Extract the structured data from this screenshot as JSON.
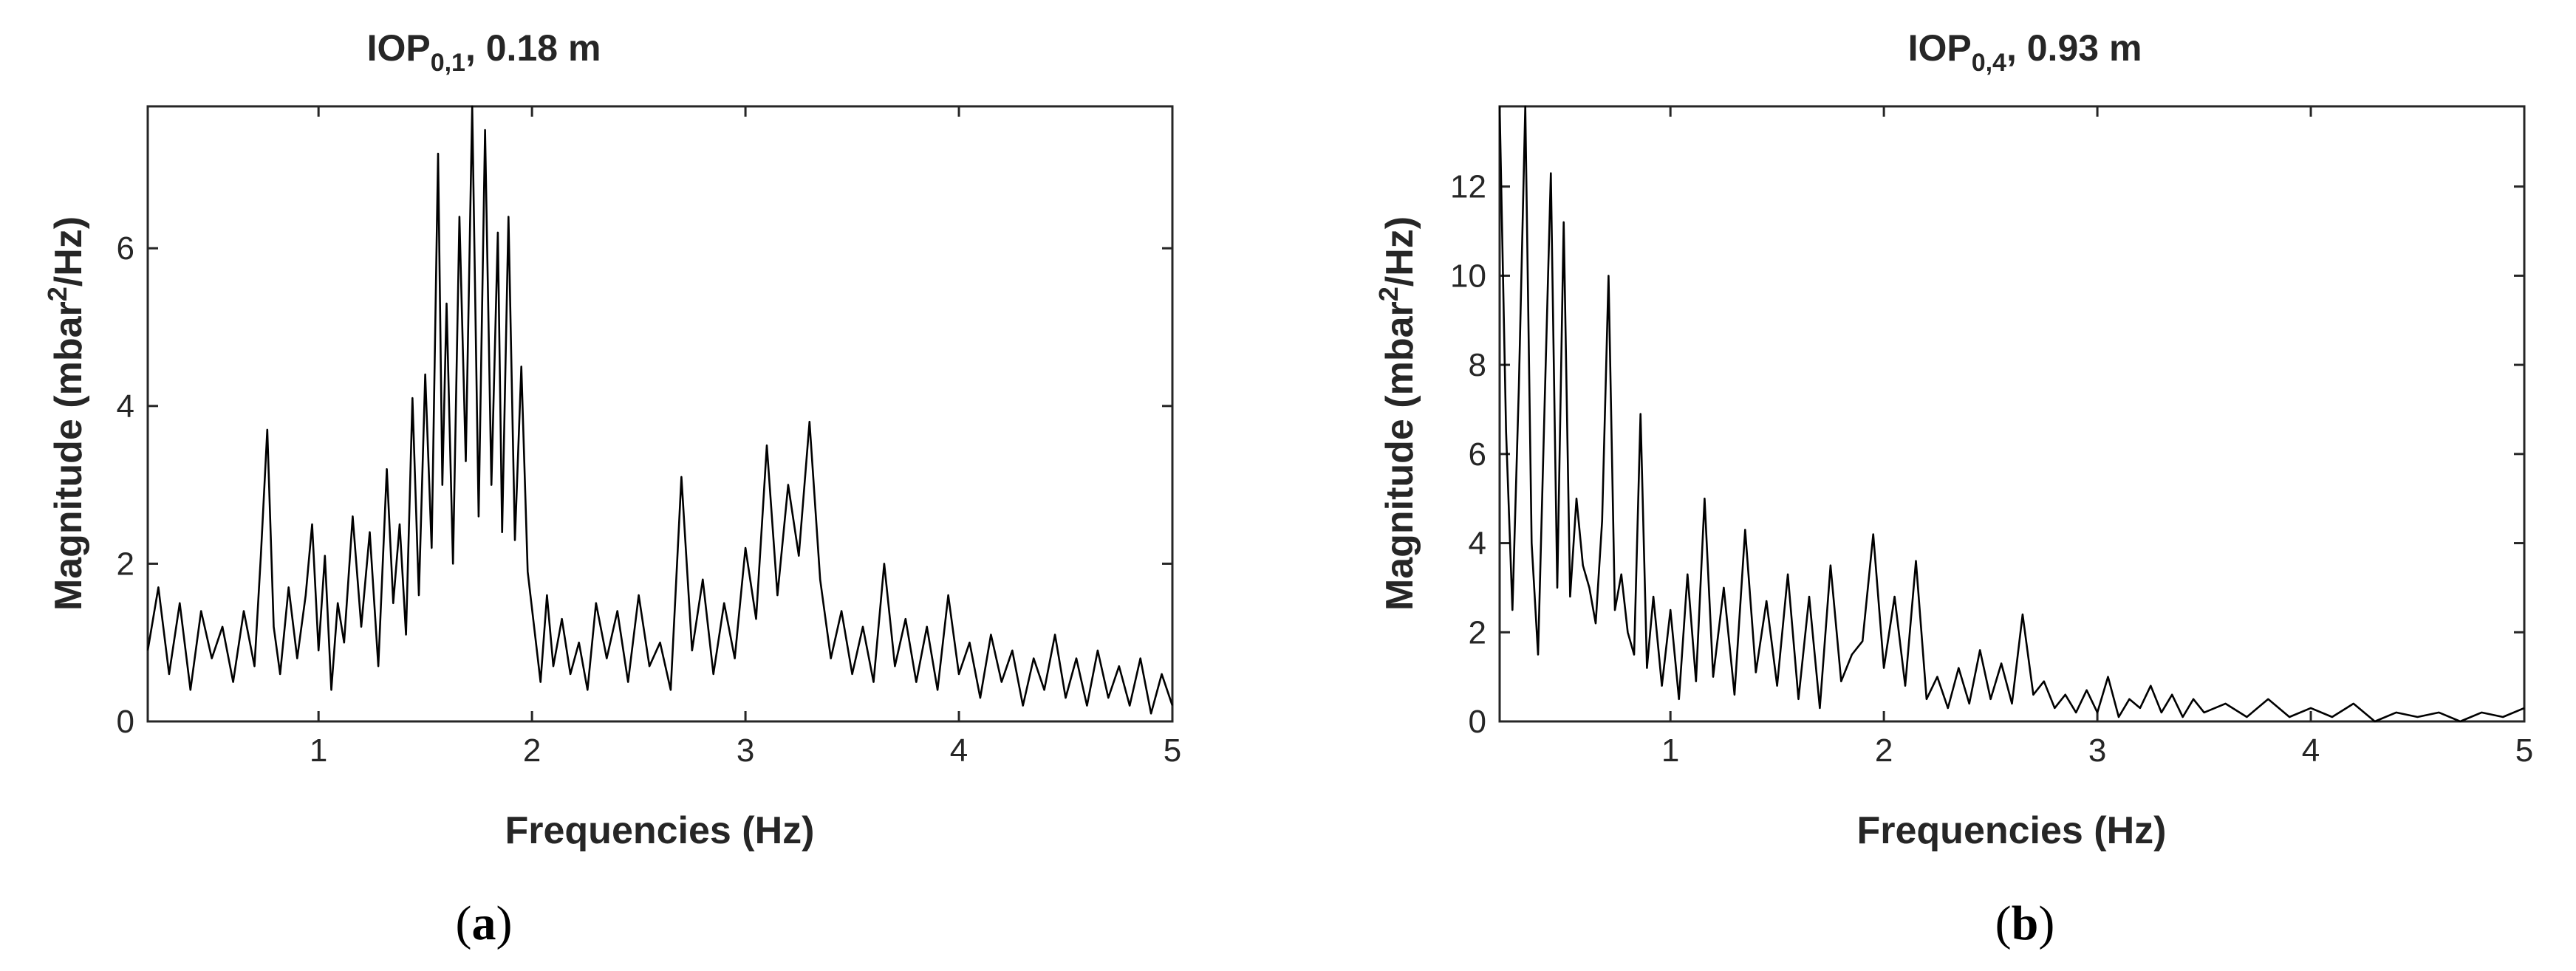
{
  "chart_data": [
    {
      "type": "line",
      "title_base": "IOP",
      "title_sub": "0,1",
      "title_rest": ", 0.18 m",
      "xlabel": "Frequencies (Hz)",
      "ylabel_base": "Magnitude (mbar",
      "ylabel_sup": "2",
      "ylabel_rest": "/Hz)",
      "caption_open": "(",
      "caption_letter": "a",
      "caption_close": ")",
      "xlim": [
        0.2,
        5
      ],
      "ylim": [
        0,
        7.8
      ],
      "xticks": [
        1,
        2,
        3,
        4,
        5
      ],
      "yticks": [
        0,
        2,
        4,
        6
      ],
      "series": [
        {
          "x": [
            0.2,
            0.25,
            0.3,
            0.35,
            0.4,
            0.45,
            0.5,
            0.55,
            0.6,
            0.65,
            0.7,
            0.73,
            0.76,
            0.79,
            0.82,
            0.86,
            0.9,
            0.94,
            0.97,
            1.0,
            1.03,
            1.06,
            1.09,
            1.12,
            1.16,
            1.2,
            1.24,
            1.28,
            1.32,
            1.35,
            1.38,
            1.41,
            1.44,
            1.47,
            1.5,
            1.53,
            1.56,
            1.58,
            1.6,
            1.63,
            1.66,
            1.69,
            1.72,
            1.75,
            1.78,
            1.81,
            1.84,
            1.86,
            1.89,
            1.92,
            1.95,
            1.98,
            2.01,
            2.04,
            2.07,
            2.1,
            2.14,
            2.18,
            2.22,
            2.26,
            2.3,
            2.35,
            2.4,
            2.45,
            2.5,
            2.55,
            2.6,
            2.65,
            2.7,
            2.75,
            2.8,
            2.85,
            2.9,
            2.95,
            3.0,
            3.05,
            3.1,
            3.15,
            3.2,
            3.25,
            3.3,
            3.35,
            3.4,
            3.45,
            3.5,
            3.55,
            3.6,
            3.65,
            3.7,
            3.75,
            3.8,
            3.85,
            3.9,
            3.95,
            4.0,
            4.05,
            4.1,
            4.15,
            4.2,
            4.25,
            4.3,
            4.35,
            4.4,
            4.45,
            4.5,
            4.55,
            4.6,
            4.65,
            4.7,
            4.75,
            4.8,
            4.85,
            4.9,
            4.95,
            5.0
          ],
          "y": [
            0.9,
            1.7,
            0.6,
            1.5,
            0.4,
            1.4,
            0.8,
            1.2,
            0.5,
            1.4,
            0.7,
            2.1,
            3.7,
            1.2,
            0.6,
            1.7,
            0.8,
            1.6,
            2.5,
            0.9,
            2.1,
            0.4,
            1.5,
            1.0,
            2.6,
            1.2,
            2.4,
            0.7,
            3.2,
            1.5,
            2.5,
            1.1,
            4.1,
            1.6,
            4.4,
            2.2,
            7.2,
            3.0,
            5.3,
            2.0,
            6.4,
            3.3,
            7.8,
            2.6,
            7.5,
            3.0,
            6.2,
            2.4,
            6.4,
            2.3,
            4.5,
            1.9,
            1.2,
            0.5,
            1.6,
            0.7,
            1.3,
            0.6,
            1.0,
            0.4,
            1.5,
            0.8,
            1.4,
            0.5,
            1.6,
            0.7,
            1.0,
            0.4,
            3.1,
            0.9,
            1.8,
            0.6,
            1.5,
            0.8,
            2.2,
            1.3,
            3.5,
            1.6,
            3.0,
            2.1,
            3.8,
            1.8,
            0.8,
            1.4,
            0.6,
            1.2,
            0.5,
            2.0,
            0.7,
            1.3,
            0.5,
            1.2,
            0.4,
            1.6,
            0.6,
            1.0,
            0.3,
            1.1,
            0.5,
            0.9,
            0.2,
            0.8,
            0.4,
            1.1,
            0.3,
            0.8,
            0.2,
            0.9,
            0.3,
            0.7,
            0.2,
            0.8,
            0.1,
            0.6,
            0.2
          ]
        }
      ]
    },
    {
      "type": "line",
      "title_base": "IOP",
      "title_sub": "0,4",
      "title_rest": ", 0.93 m",
      "xlabel": "Frequencies (Hz)",
      "ylabel_base": "Magnitude (mbar",
      "ylabel_sup": "2",
      "ylabel_rest": "/Hz)",
      "caption_open": "(",
      "caption_letter": "b",
      "caption_close": ")",
      "xlim": [
        0.2,
        5
      ],
      "ylim": [
        0,
        13.8
      ],
      "xticks": [
        1,
        2,
        3,
        4,
        5
      ],
      "yticks": [
        0,
        2,
        4,
        6,
        8,
        10,
        12
      ],
      "series": [
        {
          "x": [
            0.2,
            0.23,
            0.26,
            0.29,
            0.32,
            0.35,
            0.38,
            0.41,
            0.44,
            0.47,
            0.5,
            0.53,
            0.56,
            0.59,
            0.62,
            0.65,
            0.68,
            0.71,
            0.74,
            0.77,
            0.8,
            0.83,
            0.86,
            0.89,
            0.92,
            0.96,
            1.0,
            1.04,
            1.08,
            1.12,
            1.16,
            1.2,
            1.25,
            1.3,
            1.35,
            1.4,
            1.45,
            1.5,
            1.55,
            1.6,
            1.65,
            1.7,
            1.75,
            1.8,
            1.85,
            1.9,
            1.95,
            2.0,
            2.05,
            2.1,
            2.15,
            2.2,
            2.25,
            2.3,
            2.35,
            2.4,
            2.45,
            2.5,
            2.55,
            2.6,
            2.65,
            2.7,
            2.75,
            2.8,
            2.85,
            2.9,
            2.95,
            3.0,
            3.05,
            3.1,
            3.15,
            3.2,
            3.25,
            3.3,
            3.35,
            3.4,
            3.45,
            3.5,
            3.6,
            3.7,
            3.8,
            3.9,
            4.0,
            4.1,
            4.2,
            4.3,
            4.4,
            4.5,
            4.6,
            4.7,
            4.8,
            4.9,
            5.0
          ],
          "y": [
            13.8,
            6.5,
            2.5,
            7.5,
            13.8,
            4.0,
            1.5,
            7.0,
            12.3,
            3.0,
            11.2,
            2.8,
            5.0,
            3.5,
            3.0,
            2.2,
            4.5,
            10.0,
            2.5,
            3.3,
            2.0,
            1.5,
            6.9,
            1.2,
            2.8,
            0.8,
            2.5,
            0.5,
            3.3,
            0.9,
            5.0,
            1.0,
            3.0,
            0.6,
            4.3,
            1.1,
            2.7,
            0.8,
            3.3,
            0.5,
            2.8,
            0.3,
            3.5,
            0.9,
            1.5,
            1.8,
            4.2,
            1.2,
            2.8,
            0.8,
            3.6,
            0.5,
            1.0,
            0.3,
            1.2,
            0.4,
            1.6,
            0.5,
            1.3,
            0.4,
            2.4,
            0.6,
            0.9,
            0.3,
            0.6,
            0.2,
            0.7,
            0.2,
            1.0,
            0.1,
            0.5,
            0.3,
            0.8,
            0.2,
            0.6,
            0.1,
            0.5,
            0.2,
            0.4,
            0.1,
            0.5,
            0.1,
            0.3,
            0.1,
            0.4,
            0.0,
            0.2,
            0.1,
            0.2,
            0.0,
            0.2,
            0.1,
            0.3
          ]
        }
      ]
    }
  ]
}
